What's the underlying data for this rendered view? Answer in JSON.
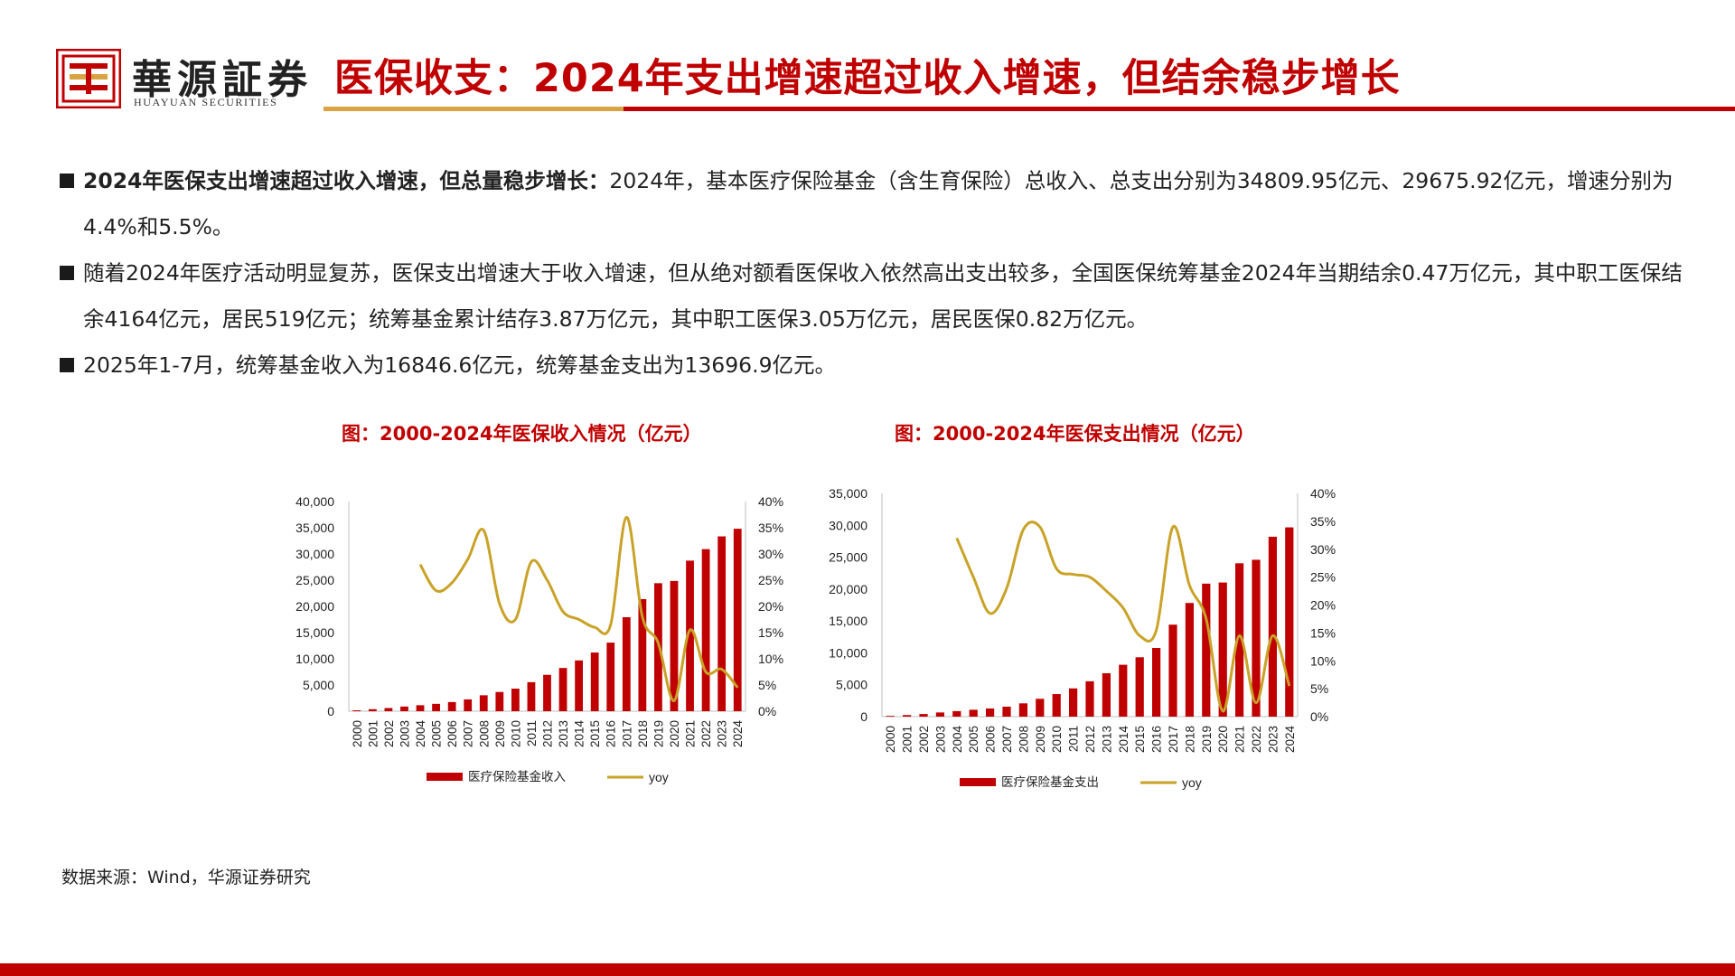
{
  "header": {
    "brand_cn": "華源証券",
    "brand_en": "HUAYUAN SECURITIES",
    "title": "医保收支：2024年支出增速超过收入增速，但结余稳步增长",
    "colors": {
      "accent": "#c00000",
      "gold": "#d9a441"
    }
  },
  "bullets": [
    {
      "lead": "2024年医保支出增速超过收入增速，但总量稳步增长：",
      "text": "2024年，基本医疗保险基金（含生育保险）总收入、总支出分别为34809.95亿元、29675.92亿元，增速分别为4.4%和5.5%。"
    },
    {
      "lead": "",
      "text": "随着2024年医疗活动明显复苏，医保支出增速大于收入增速，但从绝对额看医保收入依然高出支出较多，全国医保统筹基金2024年当期结余0.47万亿元，其中职工医保结余4164亿元，居民519亿元；统筹基金累计结存3.87万亿元，其中职工医保3.05万亿元，居民医保0.82万亿元。"
    },
    {
      "lead": "",
      "text": "2025年1-7月，统筹基金收入为16846.6亿元，统筹基金支出为13696.9亿元。"
    }
  ],
  "chart_data": [
    {
      "type": "bar",
      "title": "图：2000-2024年医保收入情况（亿元）",
      "categories": [
        "2000",
        "2001",
        "2002",
        "2003",
        "2004",
        "2005",
        "2006",
        "2007",
        "2008",
        "2009",
        "2010",
        "2011",
        "2012",
        "2013",
        "2014",
        "2015",
        "2016",
        "2017",
        "2018",
        "2019",
        "2020",
        "2021",
        "2022",
        "2023",
        "2024"
      ],
      "y_ticks": [
        "0",
        "5,000",
        "10,000",
        "15,000",
        "20,000",
        "25,000",
        "30,000",
        "35,000",
        "40,000"
      ],
      "y2_ticks": [
        "0%",
        "5%",
        "10%",
        "15%",
        "20%",
        "25%",
        "30%",
        "35%",
        "40%"
      ],
      "ylim": [
        0,
        40000
      ],
      "y2lim": [
        0,
        40
      ],
      "series": [
        {
          "name": "医疗保险基金收入",
          "kind": "bar",
          "color": "#c00000",
          "values": [
            170,
            384,
            608,
            890,
            1141,
            1405,
            1747,
            2257,
            3040,
            3672,
            4309,
            5539,
            6939,
            8248,
            9687,
            11193,
            13084,
            17932,
            21384,
            24421,
            24846,
            28727,
            30922,
            33355,
            34810
          ]
        },
        {
          "name": "yoy",
          "kind": "line",
          "color": "#c9a227",
          "values": [
            null,
            null,
            null,
            null,
            28,
            23,
            24.5,
            29,
            34.5,
            20.5,
            17.5,
            28.5,
            25,
            19,
            17.5,
            16,
            16.5,
            37,
            18,
            13,
            2,
            15.5,
            7.5,
            8,
            4.5
          ]
        }
      ],
      "legend": "bottom"
    },
    {
      "type": "bar",
      "title": "图：2000-2024年医保支出情况（亿元）",
      "categories": [
        "2000",
        "2001",
        "2002",
        "2003",
        "2004",
        "2005",
        "2006",
        "2007",
        "2008",
        "2009",
        "2010",
        "2011",
        "2012",
        "2013",
        "2014",
        "2015",
        "2016",
        "2017",
        "2018",
        "2019",
        "2020",
        "2021",
        "2022",
        "2023",
        "2024"
      ],
      "y_ticks": [
        "0",
        "5,000",
        "10,000",
        "15,000",
        "20,000",
        "25,000",
        "30,000",
        "35,000"
      ],
      "y2_ticks": [
        "0%",
        "5%",
        "10%",
        "15%",
        "20%",
        "25%",
        "30%",
        "35%",
        "40%"
      ],
      "ylim": [
        0,
        35000
      ],
      "y2lim": [
        0,
        40
      ],
      "series": [
        {
          "name": "医疗保险基金支出",
          "kind": "bar",
          "color": "#c00000",
          "values": [
            124,
            244,
            409,
            654,
            862,
            1079,
            1277,
            1562,
            2084,
            2797,
            3538,
            4431,
            5544,
            6801,
            8134,
            9312,
            10767,
            14422,
            17822,
            20854,
            21032,
            24043,
            24597,
            28208,
            29676
          ]
        },
        {
          "name": "yoy",
          "kind": "line",
          "color": "#c9a227",
          "values": [
            null,
            null,
            null,
            null,
            32,
            25,
            18.5,
            23,
            33.5,
            34,
            26.5,
            25.5,
            25,
            22.5,
            19.5,
            14.5,
            15.5,
            34,
            23.5,
            17.5,
            1,
            14.5,
            2.5,
            14.5,
            5.5
          ]
        }
      ],
      "legend": "bottom"
    }
  ],
  "source": "数据来源：Wind，华源证券研究"
}
